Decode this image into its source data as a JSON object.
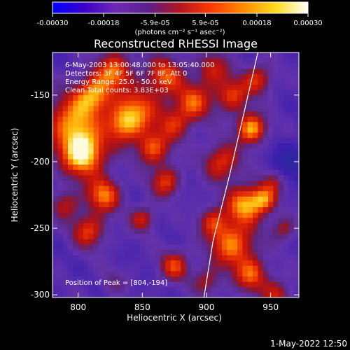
{
  "colorbar": {
    "tick_labels": [
      "-0.00030",
      "-0.00018",
      "-5.9e-05",
      "5.9e-05",
      "0.00018",
      "0.00030"
    ],
    "tick_values": [
      -0.0003,
      -0.00018,
      -5.9e-05,
      5.9e-05,
      0.00018,
      0.0003
    ],
    "range": [
      -0.0003,
      0.0003
    ],
    "units_label": "(photons cm⁻² s⁻¹ asec⁻²)",
    "colors": [
      "#0000ff",
      "#3c00c8",
      "#6e2ab4",
      "#5a1e8c",
      "#b4141e",
      "#ff3c00",
      "#ff8c00",
      "#ffdc1e",
      "#ffffff"
    ]
  },
  "chart_data": {
    "type": "heatmap",
    "title": "Reconstructed RHESSI Image",
    "xlabel": "Heliocentric X (arcsec)",
    "ylabel": "Heliocentric Y (arcsec)",
    "xlim": [
      780,
      972
    ],
    "ylim": [
      -302,
      -118
    ],
    "x_ticks": [
      800,
      850,
      900,
      950
    ],
    "y_ticks": [
      -150,
      -200,
      -250,
      -300
    ],
    "annotations": [
      "6-May-2003 13:00:48.000 to 13:05:40.000",
      "Detectors: 3F 4F 5F 6F 7F 8F, Att 0",
      "Energy Range: 25.0 - 50.0 keV",
      "Clean     Total counts: 3.83E+03"
    ],
    "peak_label": "Position of Peak = [804,-194]",
    "peak_position": [
      804,
      -194
    ],
    "limb_curve": [
      [
        940,
        -118
      ],
      [
        930,
        -160
      ],
      [
        918,
        -210
      ],
      [
        905,
        -260
      ],
      [
        898,
        -302
      ]
    ],
    "blobs": [
      [
        804,
        -194,
        0.95,
        12
      ],
      [
        795,
        -170,
        0.7,
        14
      ],
      [
        812,
        -150,
        0.7,
        10
      ],
      [
        828,
        -132,
        0.65,
        10
      ],
      [
        835,
        -172,
        0.65,
        10
      ],
      [
        848,
        -160,
        0.55,
        12
      ],
      [
        868,
        -135,
        0.6,
        10
      ],
      [
        858,
        -190,
        0.6,
        9
      ],
      [
        875,
        -172,
        0.45,
        9
      ],
      [
        890,
        -155,
        0.6,
        10
      ],
      [
        905,
        -130,
        0.45,
        9
      ],
      [
        920,
        -150,
        0.55,
        9
      ],
      [
        935,
        -175,
        0.8,
        8
      ],
      [
        940,
        -138,
        0.5,
        8
      ],
      [
        912,
        -200,
        0.55,
        10
      ],
      [
        930,
        -232,
        0.75,
        10
      ],
      [
        945,
        -228,
        0.6,
        7
      ],
      [
        920,
        -262,
        0.7,
        12
      ],
      [
        905,
        -245,
        0.45,
        8
      ],
      [
        935,
        -285,
        0.6,
        9
      ],
      [
        955,
        -300,
        0.45,
        8
      ],
      [
        820,
        -225,
        0.7,
        9
      ],
      [
        808,
        -252,
        0.55,
        9
      ],
      [
        790,
        -232,
        0.4,
        8
      ],
      [
        868,
        -215,
        0.55,
        8
      ],
      [
        850,
        -243,
        0.45,
        7
      ],
      [
        875,
        -278,
        0.55,
        8
      ],
      [
        900,
        -290,
        0.35,
        8
      ],
      [
        828,
        -290,
        0.2,
        7
      ],
      [
        960,
        -250,
        0.35,
        7
      ],
      [
        965,
        -200,
        -0.3,
        10
      ],
      [
        952,
        -215,
        0.35,
        6
      ]
    ]
  },
  "footer_timestamp": "1-May-2022 12:50"
}
